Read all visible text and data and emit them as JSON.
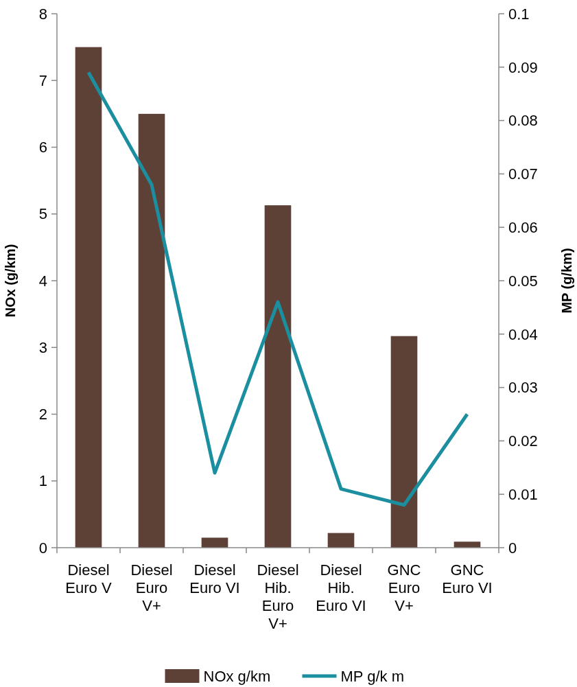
{
  "chart_data": {
    "type": "bar",
    "ylabel": "NOx (g/km)",
    "y2label": "MP (g/km)",
    "categories": [
      "Diesel\nEuro V",
      "Diesel\nEuro\nV+",
      "Diesel\nEuro VI",
      "Diesel\nHib.\nEuro\nV+",
      "Diesel\nHib.\nEuro VI",
      "GNC\nEuro\nV+",
      "GNC\nEuro VI"
    ],
    "series": [
      {
        "name": "NOx g/km",
        "color": "#5e4136",
        "values": [
          7.5,
          6.5,
          0.15,
          5.13,
          0.22,
          3.17,
          0.09
        ]
      },
      {
        "name": "MP g/k m",
        "type": "line",
        "axis": "y2",
        "color": "#1b8fa0",
        "values": [
          0.089,
          0.068,
          0.014,
          0.046,
          0.011,
          0.008,
          0.025
        ]
      }
    ],
    "ylim": [
      0,
      8
    ],
    "yticks": [
      0,
      1,
      2,
      3,
      4,
      5,
      6,
      7,
      8
    ],
    "y2lim": [
      0,
      0.1
    ],
    "y2ticks": [
      0,
      0.01,
      0.02,
      0.03,
      0.04,
      0.05,
      0.06,
      0.07,
      0.08,
      0.09,
      0.1
    ],
    "grid": false,
    "legend": "bottom",
    "marker": "none",
    "line_style": "solid"
  }
}
